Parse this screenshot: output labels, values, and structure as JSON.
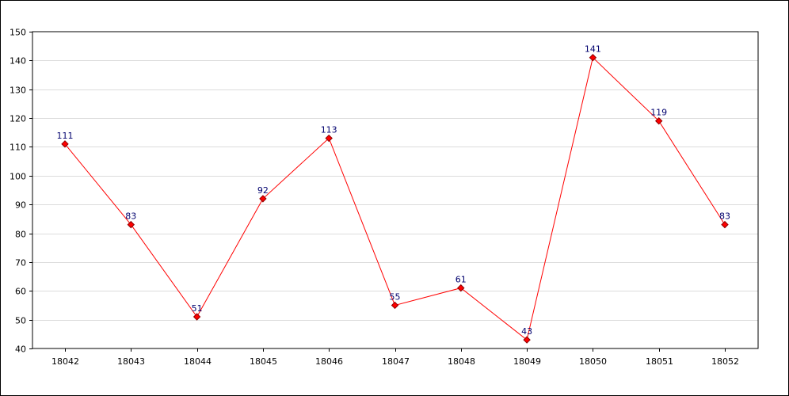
{
  "chart_data": {
    "type": "line",
    "categories": [
      "18042",
      "18043",
      "18044",
      "18045",
      "18046",
      "18047",
      "18048",
      "18049",
      "18050",
      "18051",
      "18052"
    ],
    "series": [
      {
        "values": [
          111,
          83,
          51,
          92,
          113,
          55,
          61,
          43,
          141,
          119,
          83
        ]
      }
    ],
    "data_labels": [
      "111",
      "83",
      "51",
      "92",
      "113",
      "55",
      "61",
      "43",
      "141",
      "119",
      "83"
    ],
    "ylim": [
      40,
      150
    ],
    "yticks": [
      "40",
      "50",
      "60",
      "70",
      "80",
      "90",
      "100",
      "110",
      "120",
      "130",
      "140",
      "150"
    ],
    "grid": "horizontal",
    "colors": {
      "line": "#ff0000",
      "marker_fill": "#ff0000",
      "marker_stroke": "#8b0000",
      "data_label": "#00006e",
      "grid": "#dcdcdc",
      "axis": "#000000"
    }
  }
}
